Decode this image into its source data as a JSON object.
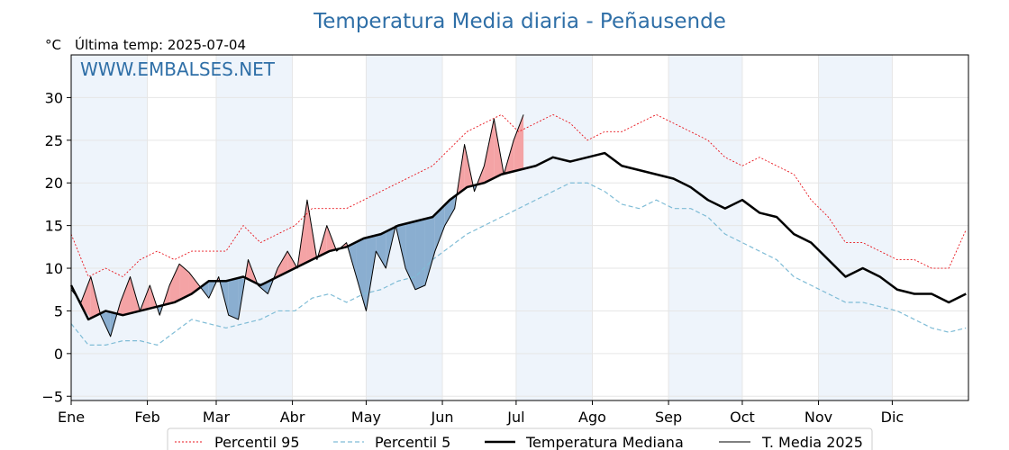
{
  "title": "Temperatura Media diaria - Peñausende",
  "unit_label": "°C",
  "last_temp_label": "Última temp: 2025-07-04",
  "watermark": "WWW.EMBALSES.NET",
  "legend": {
    "p95": "Percentil 95",
    "p5": "Percentil 5",
    "median": "Temperatura Mediana",
    "current": "T. Media 2025"
  },
  "colors": {
    "title": "#2f6fa7",
    "p95": "#e8141c",
    "p5": "#7fbcd6",
    "median": "#000000",
    "current": "#000000",
    "above_fill": "#f4a3a5",
    "below_fill": "#8aaed0",
    "shade": "#eef4fb",
    "grid": "#e6e6e6"
  },
  "chart_data": {
    "type": "line",
    "title": "Temperatura Media diaria - Peñausende",
    "xlabel": "",
    "ylabel": "°C",
    "ylim": [
      -5.5,
      35
    ],
    "yticks": [
      -5,
      0,
      5,
      10,
      15,
      20,
      25,
      30
    ],
    "ytick_labels": [
      "−5",
      "0",
      "5",
      "10",
      "15",
      "20",
      "25",
      "30"
    ],
    "x_unit": "day of year",
    "xlim": [
      1,
      366
    ],
    "months": [
      {
        "label": "Ene",
        "day": 1
      },
      {
        "label": "Feb",
        "day": 32
      },
      {
        "label": "Mar",
        "day": 60
      },
      {
        "label": "Abr",
        "day": 91
      },
      {
        "label": "May",
        "day": 121
      },
      {
        "label": "Jun",
        "day": 152
      },
      {
        "label": "Jul",
        "day": 182
      },
      {
        "label": "Ago",
        "day": 213
      },
      {
        "label": "Sep",
        "day": 244
      },
      {
        "label": "Oct",
        "day": 274
      },
      {
        "label": "Nov",
        "day": 305
      },
      {
        "label": "Dic",
        "day": 335
      }
    ],
    "shaded_months": [
      "Ene",
      "Mar",
      "May",
      "Jul",
      "Sep",
      "Nov"
    ],
    "series": [
      {
        "name": "Percentil 95",
        "x": [
          1,
          8,
          15,
          22,
          29,
          36,
          43,
          50,
          57,
          64,
          71,
          78,
          85,
          92,
          99,
          106,
          113,
          120,
          127,
          134,
          141,
          148,
          155,
          162,
          169,
          176,
          183,
          190,
          197,
          204,
          211,
          218,
          225,
          232,
          239,
          246,
          253,
          260,
          267,
          274,
          281,
          288,
          295,
          302,
          309,
          316,
          323,
          330,
          337,
          344,
          351,
          358,
          365
        ],
        "values": [
          14,
          9,
          10,
          9,
          11,
          12,
          11,
          12,
          12,
          12,
          15,
          13,
          14,
          15,
          17,
          17,
          17,
          18,
          19,
          20,
          21,
          22,
          24,
          26,
          27,
          28,
          26,
          27,
          28,
          27,
          25,
          26,
          26,
          27,
          28,
          27,
          26,
          25,
          23,
          22,
          23,
          22,
          21,
          18,
          16,
          13,
          13,
          12,
          11,
          11,
          10,
          10,
          14.5
        ]
      },
      {
        "name": "Percentil 5",
        "x": [
          1,
          8,
          15,
          22,
          29,
          36,
          43,
          50,
          57,
          64,
          71,
          78,
          85,
          92,
          99,
          106,
          113,
          120,
          127,
          134,
          141,
          148,
          155,
          162,
          169,
          176,
          183,
          190,
          197,
          204,
          211,
          218,
          225,
          232,
          239,
          246,
          253,
          260,
          267,
          274,
          281,
          288,
          295,
          302,
          309,
          316,
          323,
          330,
          337,
          344,
          351,
          358,
          365
        ],
        "values": [
          3.5,
          1,
          1,
          1.5,
          1.5,
          1,
          2.5,
          4,
          3.5,
          3,
          3.5,
          4,
          5,
          5,
          6.5,
          7,
          6,
          7,
          7.5,
          8.5,
          9,
          11,
          12.5,
          14,
          15,
          16,
          17,
          18,
          19,
          20,
          20,
          19,
          17.5,
          17,
          18,
          17,
          17,
          16,
          14,
          13,
          12,
          11,
          9,
          8,
          7,
          6,
          6,
          5.5,
          5,
          4,
          3,
          2.5,
          3
        ]
      },
      {
        "name": "Temperatura Mediana",
        "x": [
          1,
          8,
          15,
          22,
          29,
          36,
          43,
          50,
          57,
          64,
          71,
          78,
          85,
          92,
          99,
          106,
          113,
          120,
          127,
          134,
          141,
          148,
          155,
          162,
          169,
          176,
          183,
          190,
          197,
          204,
          211,
          218,
          225,
          232,
          239,
          246,
          253,
          260,
          267,
          274,
          281,
          288,
          295,
          302,
          309,
          316,
          323,
          330,
          337,
          344,
          351,
          358,
          365
        ],
        "values": [
          8,
          4,
          5,
          4.5,
          5,
          5.5,
          6,
          7,
          8.5,
          8.5,
          9,
          8,
          9,
          10,
          11,
          12,
          12.5,
          13.5,
          14,
          15,
          15.5,
          16,
          18,
          19.5,
          20,
          21,
          21.5,
          22,
          23,
          22.5,
          23,
          23.5,
          22,
          21.5,
          21,
          20.5,
          19.5,
          18,
          17,
          18,
          16.5,
          16,
          14,
          13,
          11,
          9,
          10,
          9,
          7.5,
          7,
          7,
          6,
          7
        ]
      },
      {
        "name": "T. Media 2025",
        "x": [
          1,
          5,
          9,
          13,
          17,
          21,
          25,
          29,
          33,
          37,
          41,
          45,
          49,
          53,
          57,
          61,
          65,
          69,
          73,
          77,
          81,
          85,
          89,
          93,
          97,
          101,
          105,
          109,
          113,
          117,
          121,
          125,
          129,
          133,
          137,
          141,
          145,
          149,
          153,
          157,
          161,
          165,
          169,
          173,
          177,
          181,
          185
        ],
        "values": [
          7.5,
          6,
          9,
          4.5,
          2,
          6,
          9,
          5,
          8,
          4.5,
          8,
          10.5,
          9.5,
          8,
          6.5,
          9,
          4.5,
          4,
          11,
          8,
          7,
          10,
          12,
          10,
          18,
          11,
          15,
          12,
          13,
          9,
          5,
          12,
          10,
          15,
          10,
          7.5,
          8,
          12,
          15,
          17,
          24.5,
          19,
          22,
          27.5,
          21,
          25,
          28
        ]
      }
    ]
  }
}
